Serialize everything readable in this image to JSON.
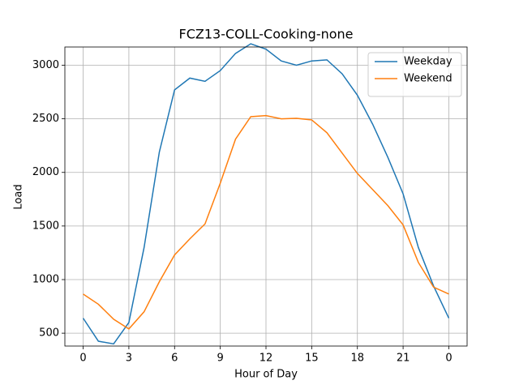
{
  "chart_data": {
    "type": "line",
    "title": "FCZ13-COLL-Cooking-none",
    "xlabel": "Hour of Day",
    "ylabel": "Load",
    "x": [
      0,
      1,
      2,
      3,
      4,
      5,
      6,
      7,
      8,
      9,
      10,
      11,
      12,
      13,
      14,
      15,
      16,
      17,
      18,
      19,
      20,
      21,
      22,
      23,
      24
    ],
    "series": [
      {
        "name": "Weekday",
        "color": "#1f77b4",
        "values": [
          640,
          425,
          400,
          600,
          1300,
          2190,
          2770,
          2880,
          2850,
          2950,
          3110,
          3200,
          3150,
          3040,
          3000,
          3040,
          3050,
          2920,
          2720,
          2450,
          2140,
          1800,
          1300,
          940,
          640
        ]
      },
      {
        "name": "Weekend",
        "color": "#ff7f0e",
        "values": [
          865,
          770,
          630,
          540,
          700,
          980,
          1230,
          1380,
          1520,
          1900,
          2310,
          2520,
          2530,
          2500,
          2505,
          2490,
          2370,
          2180,
          1990,
          1840,
          1690,
          1510,
          1160,
          930,
          865
        ]
      }
    ],
    "xlim": [
      -1.2,
      25.2
    ],
    "xticks": [
      0,
      3,
      6,
      9,
      12,
      15,
      18,
      21,
      {
        "value": 24,
        "label": "0"
      }
    ],
    "ylim": [
      380,
      3170
    ],
    "yticks": [
      500,
      1000,
      1500,
      2000,
      2500,
      3000
    ],
    "grid": true,
    "legend": "upper-right"
  }
}
